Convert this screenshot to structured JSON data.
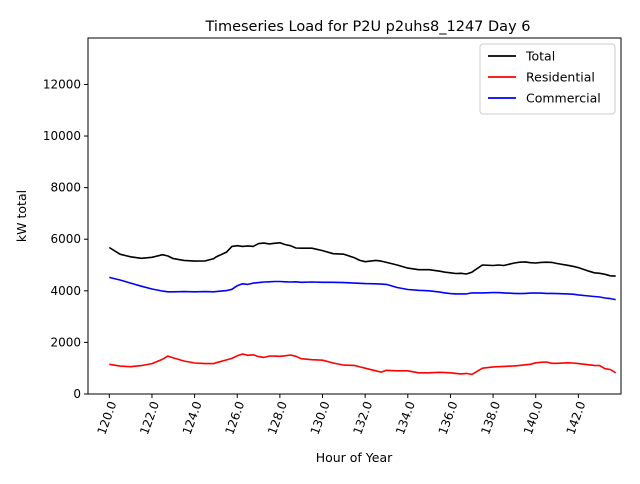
{
  "chart_data": {
    "type": "line",
    "title": "Timeseries Load for P2U p2uhs8_1247  Day 6",
    "xlabel": "Hour of Year",
    "ylabel": "kW total",
    "xlim": [
      119.0,
      144.0
    ],
    "ylim": [
      0,
      13800
    ],
    "x_ticks": [
      120,
      122,
      124,
      126,
      128,
      130,
      132,
      134,
      136,
      138,
      140,
      142
    ],
    "x_tick_labels": [
      "120.0",
      "122.0",
      "124.0",
      "126.0",
      "128.0",
      "130.0",
      "132.0",
      "134.0",
      "136.0",
      "138.0",
      "140.0",
      "142.0"
    ],
    "y_ticks": [
      0,
      2000,
      4000,
      6000,
      8000,
      10000,
      12000
    ],
    "y_tick_labels": [
      "0",
      "2000",
      "4000",
      "6000",
      "8000",
      "10000",
      "12000"
    ],
    "legend_position": "top-right",
    "x": [
      120.0,
      120.5,
      121.0,
      121.5,
      122.0,
      122.5,
      122.75,
      123.0,
      123.5,
      124.0,
      124.5,
      124.9,
      125.0,
      125.5,
      125.75,
      126.0,
      126.25,
      126.5,
      126.75,
      127.0,
      127.25,
      127.5,
      127.75,
      128.0,
      128.25,
      128.5,
      128.75,
      129.0,
      129.5,
      130.0,
      130.5,
      131.0,
      131.5,
      131.75,
      132.0,
      132.5,
      132.75,
      133.0,
      133.5,
      134.0,
      134.5,
      135.0,
      135.5,
      135.75,
      136.0,
      136.25,
      136.5,
      136.75,
      137.0,
      137.5,
      138.0,
      138.25,
      138.5,
      139.0,
      139.25,
      139.5,
      139.75,
      140.0,
      140.25,
      140.5,
      140.75,
      141.0,
      141.5,
      141.75,
      142.0,
      142.5,
      142.75,
      143.0,
      143.25,
      143.5,
      143.75
    ],
    "series": [
      {
        "name": "Total",
        "color": "#000000",
        "values": [
          5680,
          5420,
          5320,
          5260,
          5300,
          5400,
          5350,
          5250,
          5180,
          5150,
          5160,
          5250,
          5310,
          5500,
          5720,
          5750,
          5720,
          5740,
          5720,
          5830,
          5850,
          5820,
          5840,
          5860,
          5790,
          5750,
          5660,
          5650,
          5650,
          5560,
          5440,
          5420,
          5280,
          5180,
          5130,
          5180,
          5150,
          5100,
          5000,
          4880,
          4820,
          4820,
          4760,
          4720,
          4700,
          4670,
          4680,
          4650,
          4720,
          5000,
          4980,
          5000,
          4980,
          5080,
          5110,
          5120,
          5090,
          5080,
          5100,
          5110,
          5100,
          5060,
          4990,
          4950,
          4900,
          4760,
          4700,
          4680,
          4640,
          4580,
          4570
        ]
      },
      {
        "name": "Residential",
        "color": "#ff0000",
        "values": [
          1150,
          1080,
          1060,
          1100,
          1180,
          1350,
          1470,
          1400,
          1280,
          1200,
          1180,
          1180,
          1210,
          1320,
          1380,
          1480,
          1550,
          1500,
          1520,
          1450,
          1420,
          1470,
          1470,
          1460,
          1480,
          1510,
          1460,
          1370,
          1330,
          1310,
          1200,
          1120,
          1110,
          1050,
          1000,
          900,
          850,
          920,
          900,
          900,
          820,
          820,
          840,
          830,
          820,
          800,
          780,
          800,
          760,
          1000,
          1050,
          1060,
          1070,
          1090,
          1110,
          1130,
          1150,
          1210,
          1230,
          1240,
          1190,
          1190,
          1210,
          1200,
          1180,
          1130,
          1110,
          1100,
          980,
          950,
          820
        ]
      },
      {
        "name": "Commercial",
        "color": "#0000ff",
        "values": [
          4520,
          4420,
          4300,
          4180,
          4070,
          3990,
          3960,
          3960,
          3970,
          3960,
          3970,
          3960,
          3970,
          4010,
          4060,
          4200,
          4270,
          4250,
          4300,
          4320,
          4340,
          4350,
          4360,
          4360,
          4350,
          4340,
          4350,
          4330,
          4340,
          4330,
          4330,
          4320,
          4300,
          4290,
          4280,
          4270,
          4260,
          4250,
          4130,
          4050,
          4020,
          4000,
          3950,
          3920,
          3890,
          3880,
          3880,
          3880,
          3920,
          3920,
          3930,
          3930,
          3920,
          3900,
          3890,
          3900,
          3910,
          3910,
          3910,
          3900,
          3900,
          3890,
          3880,
          3870,
          3840,
          3800,
          3780,
          3760,
          3720,
          3700,
          3660
        ]
      }
    ]
  }
}
